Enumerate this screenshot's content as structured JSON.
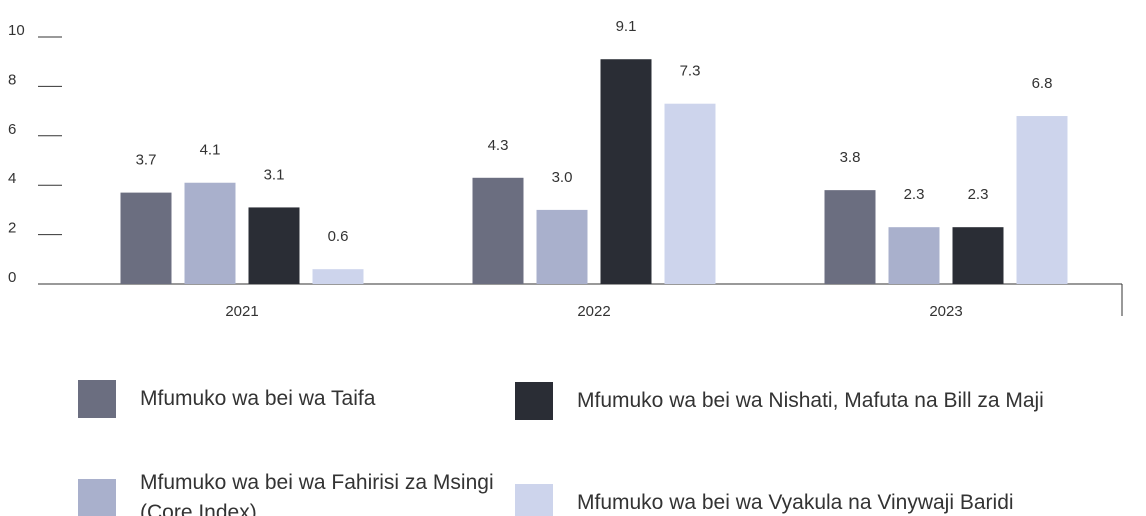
{
  "chart_data": {
    "type": "bar",
    "categories": [
      "2021",
      "2022",
      "2023"
    ],
    "series": [
      {
        "name": "Mfumuko wa bei wa Taifa",
        "color": "#6b6e80",
        "values": [
          3.7,
          4.3,
          3.8
        ],
        "value_labels": [
          "3.7",
          "4.3",
          "3.8"
        ]
      },
      {
        "name": "Mfumuko wa bei wa Fahirisi za Msingi (Core Index)",
        "color": "#a9b0cc",
        "values": [
          4.1,
          3.0,
          2.3
        ],
        "value_labels": [
          "4.1",
          "3.0",
          "2.3"
        ]
      },
      {
        "name": "Mfumuko wa bei wa Nishati, Mafuta na Bill za Maji",
        "color": "#2a2d35",
        "values": [
          3.1,
          9.1,
          2.3
        ],
        "value_labels": [
          "3.1",
          "9.1",
          "2.3"
        ]
      },
      {
        "name": "Mfumuko wa bei wa Vyakula na Vinywaji Baridi",
        "color": "#cdd4ec",
        "values": [
          0.6,
          7.3,
          6.8
        ],
        "value_labels": [
          "0.6",
          "7.3",
          "6.8"
        ]
      }
    ],
    "ylim": [
      0,
      10
    ],
    "yticks": [
      0,
      2,
      4,
      6,
      8,
      10
    ]
  }
}
